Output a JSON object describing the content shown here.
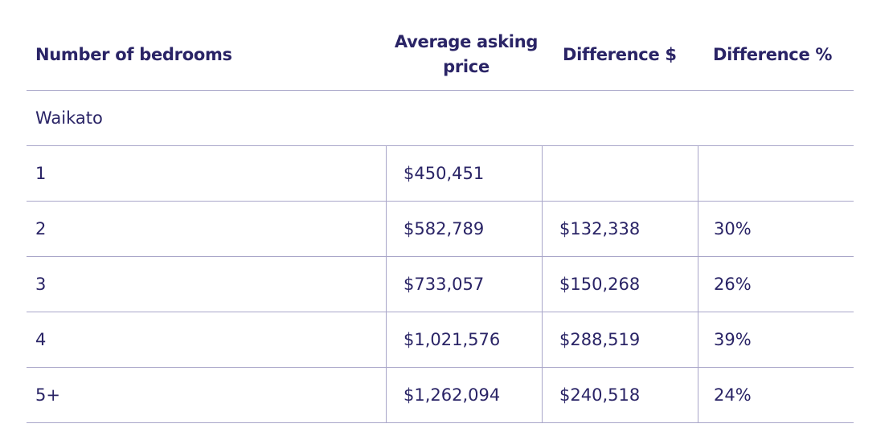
{
  "table": {
    "headers": {
      "bedrooms": "Number of bedrooms",
      "avg_price": "Average asking price",
      "diff_dollar": "Difference $",
      "diff_percent": "Difference %"
    },
    "region": "Waikato",
    "rows": [
      {
        "bedrooms": "1",
        "avg_price": "$450,451",
        "diff_dollar": "",
        "diff_percent": ""
      },
      {
        "bedrooms": "2",
        "avg_price": "$582,789",
        "diff_dollar": "$132,338",
        "diff_percent": "30%"
      },
      {
        "bedrooms": "3",
        "avg_price": "$733,057",
        "diff_dollar": "$150,268",
        "diff_percent": "26%"
      },
      {
        "bedrooms": "4",
        "avg_price": "$1,021,576",
        "diff_dollar": "$288,519",
        "diff_percent": "39%"
      },
      {
        "bedrooms": "5+",
        "avg_price": "$1,262,094",
        "diff_dollar": "$240,518",
        "diff_percent": "24%"
      }
    ]
  }
}
